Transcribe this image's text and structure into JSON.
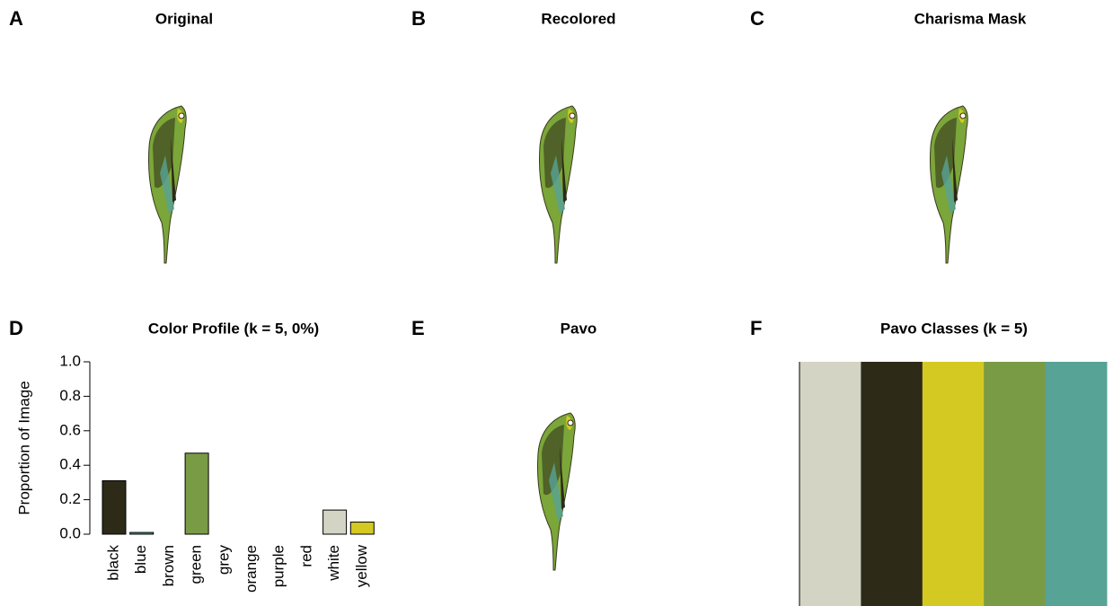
{
  "chart_data": [
    {
      "type": "image",
      "label": "A",
      "title": "Original"
    },
    {
      "type": "image",
      "label": "B",
      "title": "Recolored"
    },
    {
      "type": "image",
      "label": "C",
      "title": "Charisma Mask"
    },
    {
      "type": "bar",
      "label": "D",
      "title": "Color Profile (k = 5, 0%)",
      "y_label": "Proportion of Image",
      "categories": [
        "black",
        "blue",
        "brown",
        "green",
        "grey",
        "orange",
        "purple",
        "red",
        "white",
        "yellow"
      ],
      "values": [
        0.31,
        0.01,
        0,
        0.47,
        0,
        0,
        0,
        0,
        0.14,
        0.07
      ],
      "colors": [
        "#2d2a18",
        "#57a396",
        null,
        "#7a9b45",
        null,
        null,
        null,
        null,
        "#d3d4c4",
        "#d4c923"
      ],
      "ylim": [
        0,
        1
      ],
      "yticks": [
        {
          "value": 0,
          "label": "0.0"
        },
        0.2,
        0.4,
        0.6,
        0.8,
        {
          "value": 1,
          "label": "1.0"
        }
      ]
    },
    {
      "type": "image",
      "label": "E",
      "title": "Pavo"
    },
    {
      "type": "palette",
      "label": "F",
      "title": "Pavo Classes (k = 5)",
      "colors": [
        "#d3d4c4",
        "#2d2a18",
        "#d4c923",
        "#7a9b45",
        "#57a396"
      ]
    }
  ]
}
